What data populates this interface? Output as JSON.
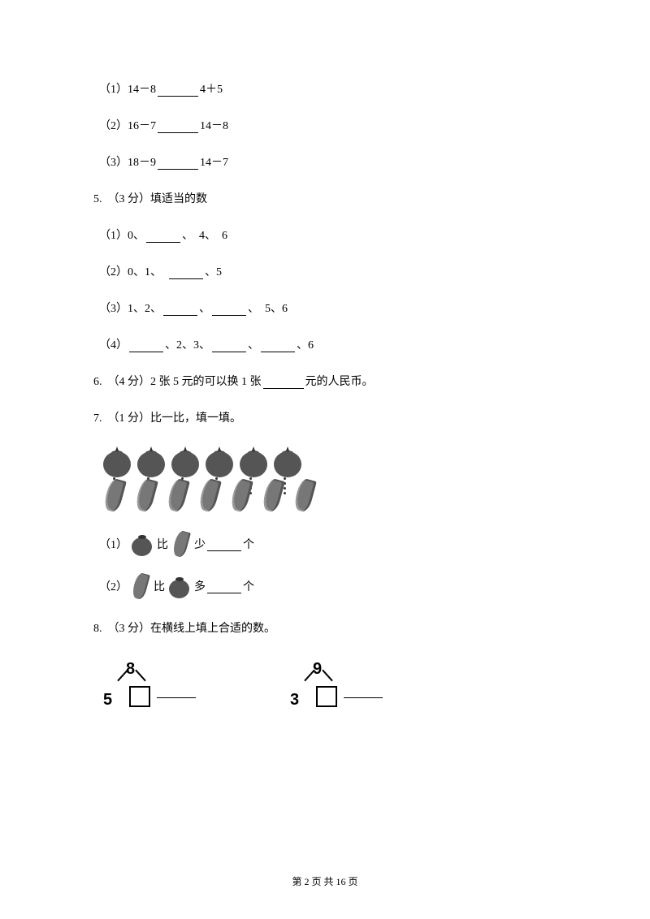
{
  "q4": {
    "sub1_prefix": "（1）14－8",
    "sub1_suffix": "4＋5",
    "sub2_prefix": "（2）16－7",
    "sub2_suffix": "14－8",
    "sub3_prefix": "（3）18－9",
    "sub3_suffix": "14－7"
  },
  "q5": {
    "title": "5.　（3 分）填适当的数",
    "sub1_prefix": "（1）0、",
    "sub1_suffix": "、　4、　6",
    "sub2_prefix": "（2）0、1、　",
    "sub2_suffix": "、5",
    "sub3_prefix": "（3）1、2、",
    "sub3_mid": "、",
    "sub3_suffix": "、　5、6",
    "sub4_prefix": "（4）",
    "sub4_a": "、2、3、",
    "sub4_b": "、",
    "sub4_c": "、6"
  },
  "q6": {
    "prefix": "6.　（4 分）2 张 5 元的可以换 1 张",
    "suffix": "元的人民币。"
  },
  "q7": {
    "title": "7.　（1 分）比一比，填一填。",
    "tomato_count": 6,
    "banana_count": 7,
    "sub1_prefix": "（1）",
    "sub1_mid": "比",
    "sub1_word": "少",
    "sub1_suffix": "个",
    "sub2_prefix": "（2）",
    "sub2_mid": "比",
    "sub2_word": "多",
    "sub2_suffix": "个"
  },
  "q8": {
    "title": "8.　（3 分）在横线上填上合适的数。",
    "bond1_top": "8",
    "bond1_left": "5",
    "bond2_top": "9",
    "bond2_left": "3"
  },
  "footer": "第 2 页 共 16 页"
}
